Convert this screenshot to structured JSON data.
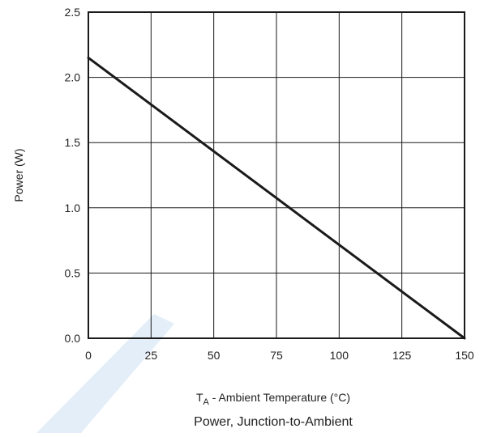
{
  "chart_data": {
    "type": "line",
    "title": "Power, Junction-to-Ambient",
    "xlabel_sub": {
      "main": "T",
      "sub": "A",
      "rest": " - Ambient Temperature (°C)"
    },
    "ylabel": "Power (W)",
    "xlim": [
      0,
      150
    ],
    "ylim": [
      0,
      2.5
    ],
    "x_ticks": [
      0,
      25,
      50,
      75,
      100,
      125,
      150
    ],
    "x_tick_labels": [
      "0",
      "25",
      "50",
      "75",
      "100",
      "125",
      "150"
    ],
    "y_ticks": [
      0,
      0.5,
      1.0,
      1.5,
      2.0,
      2.5
    ],
    "y_tick_labels": [
      "0.0",
      "0.5",
      "1.0",
      "1.5",
      "2.0",
      "2.5"
    ],
    "grid": true,
    "series": [
      {
        "x": [
          0,
          150
        ],
        "y": [
          2.15,
          0.0
        ],
        "color": "#1a1a1a"
      }
    ],
    "watermark_color": "#2b7fd4"
  }
}
